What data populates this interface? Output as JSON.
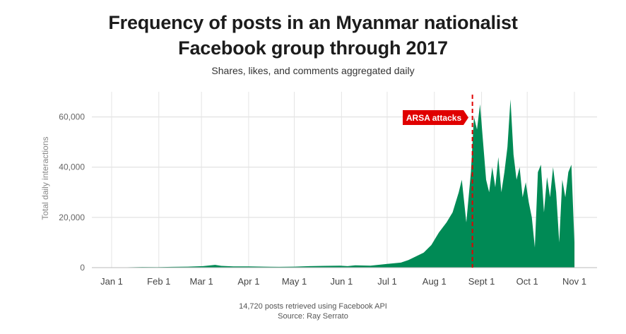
{
  "chart_data": {
    "type": "area",
    "title_line1": "Frequency of posts in an Myanmar nationalist",
    "title_line2": "Facebook group through 2017",
    "subtitle": "Shares, likes, and comments aggregated daily",
    "ylabel": "Total daily interactions",
    "xlabel": "",
    "x_tick_labels": [
      "Jan 1",
      "Feb 1",
      "Mar 1",
      "Apr 1",
      "May 1",
      "Jun 1",
      "Jul 1",
      "Aug 1",
      "Sept 1",
      "Oct 1",
      "Nov 1"
    ],
    "x_tick_days": [
      0,
      31,
      59,
      90,
      120,
      151,
      181,
      212,
      243,
      273,
      304
    ],
    "y_ticks": [
      0,
      20000,
      40000,
      60000
    ],
    "y_tick_labels": [
      "0",
      "20,000",
      "40,000",
      "60,000"
    ],
    "ylim": [
      0,
      70000
    ],
    "xlim_days": [
      0,
      304
    ],
    "grid": true,
    "series": [
      {
        "color": "#008a55",
        "points": [
          [
            0,
            0
          ],
          [
            10,
            150
          ],
          [
            20,
            250
          ],
          [
            30,
            200
          ],
          [
            40,
            300
          ],
          [
            50,
            400
          ],
          [
            60,
            600
          ],
          [
            68,
            1100
          ],
          [
            72,
            700
          ],
          [
            80,
            500
          ],
          [
            90,
            500
          ],
          [
            100,
            400
          ],
          [
            110,
            300
          ],
          [
            120,
            400
          ],
          [
            130,
            600
          ],
          [
            140,
            700
          ],
          [
            150,
            800
          ],
          [
            155,
            600
          ],
          [
            160,
            900
          ],
          [
            170,
            800
          ],
          [
            181,
            1500
          ],
          [
            190,
            2000
          ],
          [
            195,
            3000
          ],
          [
            200,
            4500
          ],
          [
            205,
            6000
          ],
          [
            210,
            9000
          ],
          [
            215,
            14000
          ],
          [
            220,
            18000
          ],
          [
            224,
            22000
          ],
          [
            228,
            30000
          ],
          [
            230,
            35000
          ],
          [
            233,
            18000
          ],
          [
            236,
            38000
          ],
          [
            238,
            60000
          ],
          [
            240,
            55000
          ],
          [
            242,
            65000
          ],
          [
            244,
            50000
          ],
          [
            246,
            35000
          ],
          [
            248,
            30000
          ],
          [
            250,
            40000
          ],
          [
            252,
            32000
          ],
          [
            254,
            44000
          ],
          [
            256,
            30000
          ],
          [
            258,
            38000
          ],
          [
            260,
            48000
          ],
          [
            262,
            67000
          ],
          [
            264,
            45000
          ],
          [
            266,
            35000
          ],
          [
            268,
            40000
          ],
          [
            270,
            28000
          ],
          [
            272,
            34000
          ],
          [
            274,
            26000
          ],
          [
            276,
            20000
          ],
          [
            278,
            8000
          ],
          [
            280,
            38000
          ],
          [
            282,
            41000
          ],
          [
            284,
            22000
          ],
          [
            286,
            36000
          ],
          [
            288,
            28000
          ],
          [
            290,
            40000
          ],
          [
            292,
            30000
          ],
          [
            294,
            10000
          ],
          [
            296,
            35000
          ],
          [
            298,
            28000
          ],
          [
            300,
            38000
          ],
          [
            302,
            41000
          ],
          [
            304,
            10000
          ]
        ]
      }
    ],
    "annotation": {
      "label": "ARSA attacks",
      "day": 237,
      "color": "#e00000"
    }
  },
  "footer": {
    "line1": "14,720 posts retrieved using Facebook API",
    "line2": "Source: Ray Serrato"
  }
}
